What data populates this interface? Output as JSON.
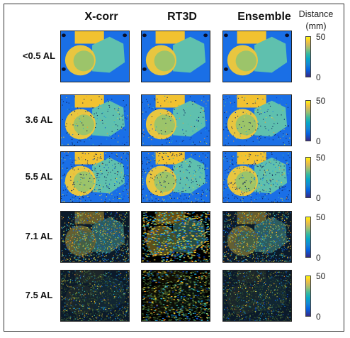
{
  "columns": [
    "X-corr",
    "RT3D",
    "Ensemble"
  ],
  "rows": [
    {
      "label": "<0.5 AL",
      "noise": 0.0,
      "sparse": 0.0
    },
    {
      "label": "3.6 AL",
      "noise": 0.25,
      "sparse": 0.0
    },
    {
      "label": "5.5 AL",
      "noise": 0.55,
      "sparse": 0.0
    },
    {
      "label": "7.1 AL",
      "noise": 0.9,
      "sparse": 0.6
    },
    {
      "label": "7.5 AL",
      "noise": 1.0,
      "sparse": 0.93
    }
  ],
  "colorbar": {
    "title_line1": "Distance",
    "title_line2": "(mm)",
    "max_label": "50",
    "min_label": "0"
  },
  "colors": {
    "background": "#1a6fe6",
    "wall": "#5fc0ae",
    "object_ring": "#e8c640",
    "object_inner": "#9cc46a",
    "top_block": "#f2c230",
    "dark": "#000000"
  }
}
